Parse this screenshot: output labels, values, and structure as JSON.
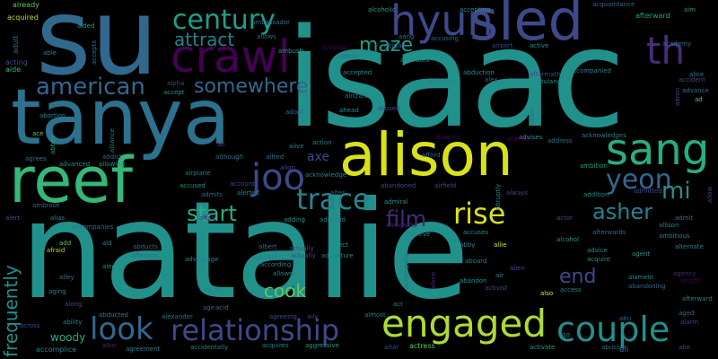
{
  "words": {
    "natalie": "natalie",
    "isaac": "isaac",
    "su": "su",
    "tanya": "tanya",
    "alison": "alison",
    "reef": "reef",
    "sled": "sled",
    "sang": "sang",
    "crawl": "crawl",
    "hyun": "hyun",
    "th": "th",
    "engaged": "engaged",
    "couple": "couple",
    "relationship": "relationship",
    "look": "look",
    "trace": "trace",
    "joo": "joo",
    "rise": "rise",
    "century": "century",
    "american": "american",
    "somewhere": "somewhere",
    "attract": "attract",
    "maze": "maze",
    "yeon": "yeon",
    "mi": "mi",
    "start": "start",
    "film": "film",
    "asher": "asher",
    "end": "end",
    "cook": "cook",
    "frequently": "frequently",
    "axe": "axe",
    "woody": "woody",
    "already": "already",
    "acquired": "acquired",
    "aided": "aided",
    "adult": "adult",
    "able": "able",
    "acting": "acting",
    "aide": "aide",
    "ambassador": "ambassador",
    "allows": "allows",
    "ambush": "ambush",
    "accepts": "accepts",
    "accepting": "accepting",
    "alcoholic": "alcoholic",
    "acquaintance": "acquaintance",
    "afterward": "afterward",
    "aim": "aim",
    "abigail": "abigail",
    "activists": "activists",
    "actual": "actual",
    "aang": "aang",
    "accusing": "accusing",
    "airport": "airport",
    "active": "active",
    "academy": "academy",
    "accompanied": "accompanied",
    "alice": "alice",
    "accident": "accident",
    "advance": "advance",
    "ad": "ad",
    "aaron": "aaron",
    "activates": "activates",
    "abduction": "abduction",
    "aftermath": "aftermath",
    "accepted": "accepted",
    "alex": "alex",
    "ambulance": "ambulance",
    "adoptive": "adoptive",
    "additional": "additional",
    "adam": "adam",
    "aircraft": "aircraft",
    "adopt": "adopt",
    "alpha": "alpha",
    "accept": "accept",
    "abused": "abused",
    "ahead": "ahead",
    "abortion": "abortion",
    "ace": "ace",
    "alliance": "alliance",
    "abbey": "abbey",
    "alive": "alive",
    "ah": "ah",
    "addict": "addict",
    "allowing": "allowing",
    "although": "although",
    "alfred": "alfred",
    "align": "align",
    "action": "action",
    "absence": "absence",
    "abandon": "abandon",
    "advises": "advises",
    "address": "address",
    "acknowledges": "acknowledges",
    "ambition": "ambition",
    "afford": "afford",
    "abruptly": "abruptly",
    "always": "always",
    "addition": "addition",
    "admitted": "admitted",
    "allow": "allow",
    "agrees": "agrees",
    "advanced": "advanced",
    "accused": "accused",
    "account": "account",
    "airplane": "airplane",
    "admits": "admits",
    "alerted": "alerted",
    "acknowledge": "acknowledge",
    "alter": "alter",
    "abandoned": "abandoned",
    "airfield": "airfield",
    "ambrose": "ambrose",
    "alert": "alert",
    "alias": "alias",
    "affair": "affair",
    "accompanies": "accompanies",
    "adding": "adding",
    "adopted": "adopted",
    "admiral": "admiral",
    "actor": "actor",
    "admit": "admit",
    "allison": "allison",
    "alternate": "alternate",
    "add": "add",
    "afraid": "afraid",
    "aid": "aid",
    "abducts": "abducts",
    "affection": "affection",
    "albert": "albert",
    "affect": "affect",
    "alongside": "alongside",
    "achieve": "achieve",
    "accuses": "accuses",
    "abby": "abby",
    "allie": "allie",
    "alcohol": "alcohol",
    "afterwards": "afterwards",
    "ambitious": "ambitious",
    "advice": "advice",
    "acquire": "acquire",
    "agent": "agent",
    "alec": "alec",
    "alley": "alley",
    "advantage": "advantage",
    "afterlife": "afterlife",
    "actually": "actually",
    "adventure": "adventure",
    "according": "according",
    "allowed": "allowed",
    "aboard": "aboard",
    "allen": "allen",
    "abandon2": "abandon",
    "activist": "activist",
    "air": "air",
    "also": "also",
    "access": "access",
    "alamein": "alamein",
    "abandoning": "abandoning",
    "agency": "agency",
    "alright": "alright",
    "aging": "aging",
    "along": "along",
    "abuse": "abuse",
    "age": "age",
    "acid": "acid",
    "alone": "alone",
    "accompany": "accompany",
    "abu": "abu",
    "aged": "aged",
    "alarm": "alarm",
    "ability": "ability",
    "abducted": "abducted",
    "alexander": "alexander",
    "agreeing": "agreeing",
    "daily": "aily",
    "almost": "almost",
    "across": "across",
    "act": "act",
    "accomplice": "accomplice",
    "altar": "altar",
    "agreement": "agreement",
    "accidentally": "accidentally",
    "acquires": "acquires",
    "aggressive": "aggressive",
    "altar2": "altar",
    "actress": "actress",
    "activate": "activate",
    "ago": "ago",
    "abusive": "abusive",
    "abe": "abe",
    "ali": "ali",
    "afterward2": "afterward",
    "actually2": "actually"
  }
}
